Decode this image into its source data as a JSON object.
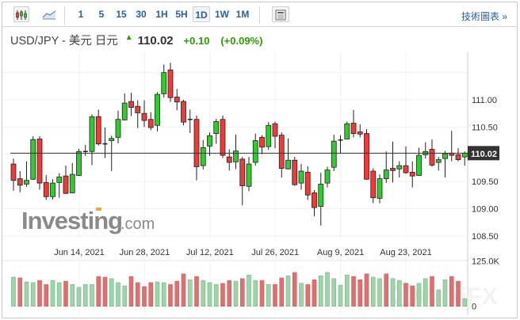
{
  "toolbar": {
    "chart_types": [
      {
        "name": "candlestick-icon",
        "active": true
      },
      {
        "name": "line-chart-icon",
        "active": false
      }
    ],
    "intervals": [
      {
        "label": "1",
        "active": false
      },
      {
        "label": "5",
        "active": false
      },
      {
        "label": "15",
        "active": false
      },
      {
        "label": "30",
        "active": false
      },
      {
        "label": "1H",
        "active": false
      },
      {
        "label": "5H",
        "active": false
      },
      {
        "label": "1D",
        "active": true
      },
      {
        "label": "1W",
        "active": false
      },
      {
        "label": "1M",
        "active": false
      }
    ],
    "layout_icon": "layout-icon",
    "tech_chart_link": "技術圖表 »"
  },
  "header": {
    "pair": "USD/JPY - 美元 日元",
    "arrow_icon": "up-arrow-icon",
    "price": "110.02",
    "change": "+0.10",
    "change_percent": "(+0.09%)"
  },
  "colors": {
    "up": "#2ecc2e",
    "down": "#f03a3a",
    "vol_up": "#9fd4aa",
    "vol_down": "#e07070",
    "positive_text": "#2a9d00",
    "link": "#2a5f9e"
  },
  "logo": "Investing.com",
  "watermark": "WikiFX",
  "chart_data": {
    "type": "candlestick",
    "symbol": "USD/JPY",
    "interval": "1D",
    "last_price_label": "110.02",
    "y_ticks": [
      "111.00",
      "110.50",
      "110.02",
      "109.50",
      "109.00",
      "108.50"
    ],
    "y_tick_values": [
      111.0,
      110.5,
      110.02,
      109.5,
      109.0,
      108.5
    ],
    "ylim": [
      108.44,
      111.9
    ],
    "x_ticks": [
      {
        "label": "Jun 14, 2021",
        "index": 10
      },
      {
        "label": "Jun 28, 2021",
        "index": 20
      },
      {
        "label": "Jul 12, 2021",
        "index": 30
      },
      {
        "label": "Jul 26, 2021",
        "index": 40
      },
      {
        "label": "Aug 9, 2021",
        "index": 50
      },
      {
        "label": "Aug 23, 2021",
        "index": 60
      }
    ],
    "volume_ticks": [
      "125.0K",
      "0"
    ],
    "volume_max": 125,
    "ohlc": [
      [
        109.82,
        109.92,
        109.33,
        109.52
      ],
      [
        109.55,
        109.69,
        109.3,
        109.43
      ],
      [
        109.45,
        109.87,
        109.4,
        109.52
      ],
      [
        109.54,
        110.33,
        109.53,
        110.27
      ],
      [
        110.28,
        110.33,
        109.35,
        109.47
      ],
      [
        109.48,
        109.62,
        109.16,
        109.22
      ],
      [
        109.22,
        109.54,
        109.17,
        109.47
      ],
      [
        109.48,
        109.65,
        109.2,
        109.58
      ],
      [
        109.6,
        109.79,
        109.27,
        109.28
      ],
      [
        109.29,
        109.84,
        109.28,
        109.63
      ],
      [
        109.61,
        110.1,
        109.6,
        110.05
      ],
      [
        110.05,
        110.17,
        109.97,
        110.04
      ],
      [
        110.05,
        110.73,
        109.8,
        110.69
      ],
      [
        110.69,
        110.82,
        110.16,
        110.19
      ],
      [
        110.19,
        110.49,
        109.93,
        110.18
      ],
      [
        110.25,
        110.34,
        109.69,
        110.29
      ],
      [
        110.31,
        110.8,
        110.2,
        110.64
      ],
      [
        110.63,
        111.12,
        110.62,
        110.94
      ],
      [
        110.97,
        111.13,
        110.7,
        110.86
      ],
      [
        110.88,
        110.99,
        110.48,
        110.76
      ],
      [
        110.75,
        110.99,
        110.5,
        110.62
      ],
      [
        110.64,
        110.77,
        110.44,
        110.49
      ],
      [
        110.53,
        111.14,
        110.42,
        111.1
      ],
      [
        111.11,
        111.65,
        111.04,
        111.5
      ],
      [
        111.55,
        111.68,
        110.96,
        111.04
      ],
      [
        111.05,
        111.2,
        110.81,
        110.96
      ],
      [
        110.97,
        111.0,
        110.53,
        110.59
      ],
      [
        110.64,
        110.82,
        110.39,
        110.63
      ],
      [
        110.64,
        110.71,
        109.52,
        109.77
      ],
      [
        109.79,
        110.26,
        109.72,
        110.12
      ],
      [
        110.15,
        110.4,
        109.97,
        110.34
      ],
      [
        110.38,
        110.65,
        110.19,
        110.6
      ],
      [
        110.64,
        110.71,
        109.93,
        109.98
      ],
      [
        109.95,
        110.09,
        109.7,
        109.85
      ],
      [
        109.86,
        110.36,
        109.73,
        110.06
      ],
      [
        109.91,
        109.95,
        109.06,
        109.42
      ],
      [
        109.41,
        109.95,
        109.32,
        109.82
      ],
      [
        109.85,
        110.38,
        109.79,
        110.25
      ],
      [
        110.31,
        110.35,
        110.0,
        110.13
      ],
      [
        110.14,
        110.59,
        110.08,
        110.53
      ],
      [
        110.56,
        110.6,
        110.11,
        110.33
      ],
      [
        110.35,
        110.4,
        109.57,
        109.74
      ],
      [
        109.73,
        110.29,
        109.72,
        109.89
      ],
      [
        109.89,
        109.95,
        109.42,
        109.44
      ],
      [
        109.47,
        109.82,
        109.35,
        109.69
      ],
      [
        109.67,
        109.78,
        109.16,
        109.25
      ],
      [
        109.29,
        109.34,
        108.86,
        109.02
      ],
      [
        109.04,
        109.66,
        108.69,
        109.45
      ],
      [
        109.47,
        109.77,
        109.39,
        109.71
      ],
      [
        109.76,
        110.36,
        109.69,
        110.24
      ],
      [
        110.26,
        110.35,
        110.01,
        110.25
      ],
      [
        110.28,
        110.6,
        110.27,
        110.56
      ],
      [
        110.57,
        110.81,
        110.31,
        110.38
      ],
      [
        110.41,
        110.55,
        110.31,
        110.37
      ],
      [
        110.38,
        110.46,
        109.53,
        109.54
      ],
      [
        109.69,
        109.74,
        109.1,
        109.2
      ],
      [
        109.19,
        109.63,
        109.1,
        109.55
      ],
      [
        109.55,
        110.05,
        109.47,
        109.71
      ],
      [
        109.74,
        110.23,
        109.48,
        109.7
      ],
      [
        109.73,
        109.87,
        109.57,
        109.79
      ],
      [
        109.79,
        110.14,
        109.64,
        109.66
      ],
      [
        109.67,
        109.87,
        109.39,
        109.6
      ],
      [
        109.61,
        110.12,
        109.6,
        109.98
      ],
      [
        109.99,
        110.22,
        109.92,
        110.05
      ],
      [
        110.09,
        110.27,
        109.77,
        109.8
      ],
      [
        109.85,
        109.95,
        109.7,
        109.9
      ],
      [
        109.92,
        110.06,
        109.57,
        110.01
      ],
      [
        110.02,
        110.43,
        109.87,
        109.98
      ],
      [
        109.99,
        110.11,
        109.87,
        109.9
      ],
      [
        109.95,
        110.05,
        109.79,
        110.02
      ]
    ],
    "volume_k": [
      80,
      78,
      67,
      65,
      71,
      60,
      71,
      65,
      69,
      60,
      52,
      60,
      60,
      82,
      80,
      76,
      65,
      56,
      82,
      65,
      54,
      65,
      67,
      65,
      60,
      69,
      89,
      73,
      82,
      71,
      65,
      60,
      63,
      71,
      69,
      76,
      86,
      71,
      71,
      60,
      60,
      78,
      84,
      93,
      63,
      60,
      73,
      84,
      93,
      76,
      58,
      86,
      82,
      73,
      89,
      80,
      76,
      89,
      76,
      71,
      63,
      56,
      63,
      76,
      82,
      45,
      73,
      82,
      69,
      21
    ],
    "volume_dir": [
      "u",
      "d",
      "u",
      "u",
      "d",
      "d",
      "u",
      "u",
      "d",
      "u",
      "u",
      "u",
      "u",
      "d",
      "d",
      "u",
      "u",
      "u",
      "d",
      "d",
      "d",
      "d",
      "u",
      "u",
      "d",
      "d",
      "d",
      "u",
      "d",
      "u",
      "u",
      "u",
      "d",
      "d",
      "u",
      "d",
      "u",
      "u",
      "d",
      "u",
      "d",
      "d",
      "u",
      "d",
      "u",
      "d",
      "d",
      "u",
      "u",
      "u",
      "u",
      "u",
      "d",
      "d",
      "d",
      "u",
      "u",
      "d",
      "u",
      "u",
      "d",
      "d",
      "u",
      "u",
      "d",
      "u",
      "u",
      "d",
      "d",
      "u"
    ]
  }
}
